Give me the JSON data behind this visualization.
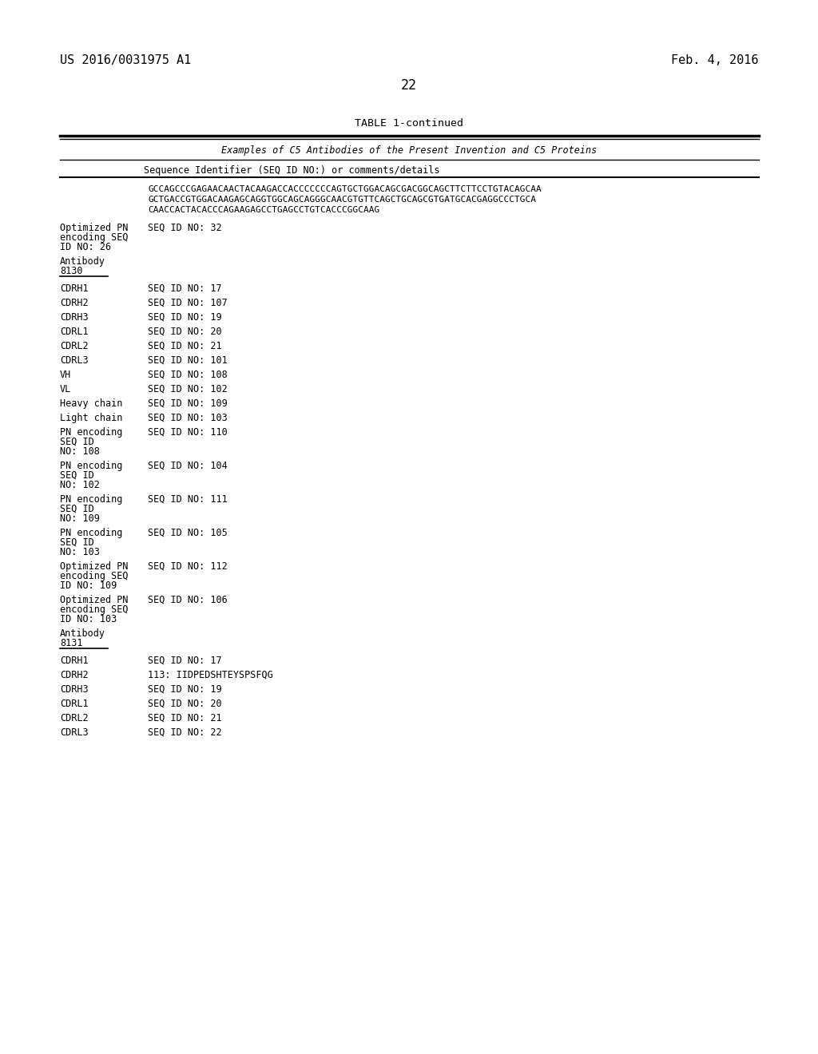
{
  "patent_number": "US 2016/0031975 A1",
  "patent_date": "Feb. 4, 2016",
  "page_number": "22",
  "table_title": "TABLE 1-continued",
  "table_header1": "Examples of C5 Antibodies of the Present Invention and C5 Proteins",
  "table_header2": "Sequence Identifier (SEQ ID NO:) or comments/details",
  "sequence_text": "GCCAGCCCGAGAACAACTACAAGACCACCCCCCCAGTGCTGGACAGCGACGGCAGCTTCTTCCTGTACAGCAA\nGCTGACCGTGGACAAGAGCAGGTGGCAGCAGGGCAACGTGTTCAGCTGCAGCGTGATGCACGAGGCCCTGCA\nCAACCACTACACCCAGAAGAGCCTGAGCCTGTCACCCGGCAAG",
  "rows": [
    {
      "label": "Optimized PN\nencoding SEQ\nID NO: 26",
      "value": "SEQ ID NO: 32"
    },
    {
      "label": "Antibody\n8130",
      "value": "",
      "underline": true
    },
    {
      "label": "CDRH1",
      "value": "SEQ ID NO: 17"
    },
    {
      "label": "CDRH2",
      "value": "SEQ ID NO: 107"
    },
    {
      "label": "CDRH3",
      "value": "SEQ ID NO: 19"
    },
    {
      "label": "CDRL1",
      "value": "SEQ ID NO: 20"
    },
    {
      "label": "CDRL2",
      "value": "SEQ ID NO: 21"
    },
    {
      "label": "CDRL3",
      "value": "SEQ ID NO: 101"
    },
    {
      "label": "VH",
      "value": "SEQ ID NO: 108"
    },
    {
      "label": "VL",
      "value": "SEQ ID NO: 102"
    },
    {
      "label": "Heavy chain",
      "value": "SEQ ID NO: 109"
    },
    {
      "label": "Light chain",
      "value": "SEQ ID NO: 103"
    },
    {
      "label": "PN encoding\nSEQ ID\nNO: 108",
      "value": "SEQ ID NO: 110"
    },
    {
      "label": "PN encoding\nSEQ ID\nNO: 102",
      "value": "SEQ ID NO: 104"
    },
    {
      "label": "PN encoding\nSEQ ID\nNO: 109",
      "value": "SEQ ID NO: 111"
    },
    {
      "label": "PN encoding\nSEQ ID\nNO: 103",
      "value": "SEQ ID NO: 105"
    },
    {
      "label": "Optimized PN\nencoding SEQ\nID NO: 109",
      "value": "SEQ ID NO: 112"
    },
    {
      "label": "Optimized PN\nencoding SEQ\nID NO: 103",
      "value": "SEQ ID NO: 106"
    },
    {
      "label": "Antibody\n8131",
      "value": "",
      "underline": true
    },
    {
      "label": "CDRH1",
      "value": "SEQ ID NO: 17"
    },
    {
      "label": "CDRH2",
      "value": "113: IIDPEDSHTEYSPSFQG"
    },
    {
      "label": "CDRH3",
      "value": "SEQ ID NO: 19"
    },
    {
      "label": "CDRL1",
      "value": "SEQ ID NO: 20"
    },
    {
      "label": "CDRL2",
      "value": "SEQ ID NO: 21"
    },
    {
      "label": "CDRL3",
      "value": "SEQ ID NO: 22"
    }
  ],
  "bg_color": "#ffffff",
  "text_color": "#000000",
  "font_size": 8.5,
  "mono_font_size": 8.0
}
